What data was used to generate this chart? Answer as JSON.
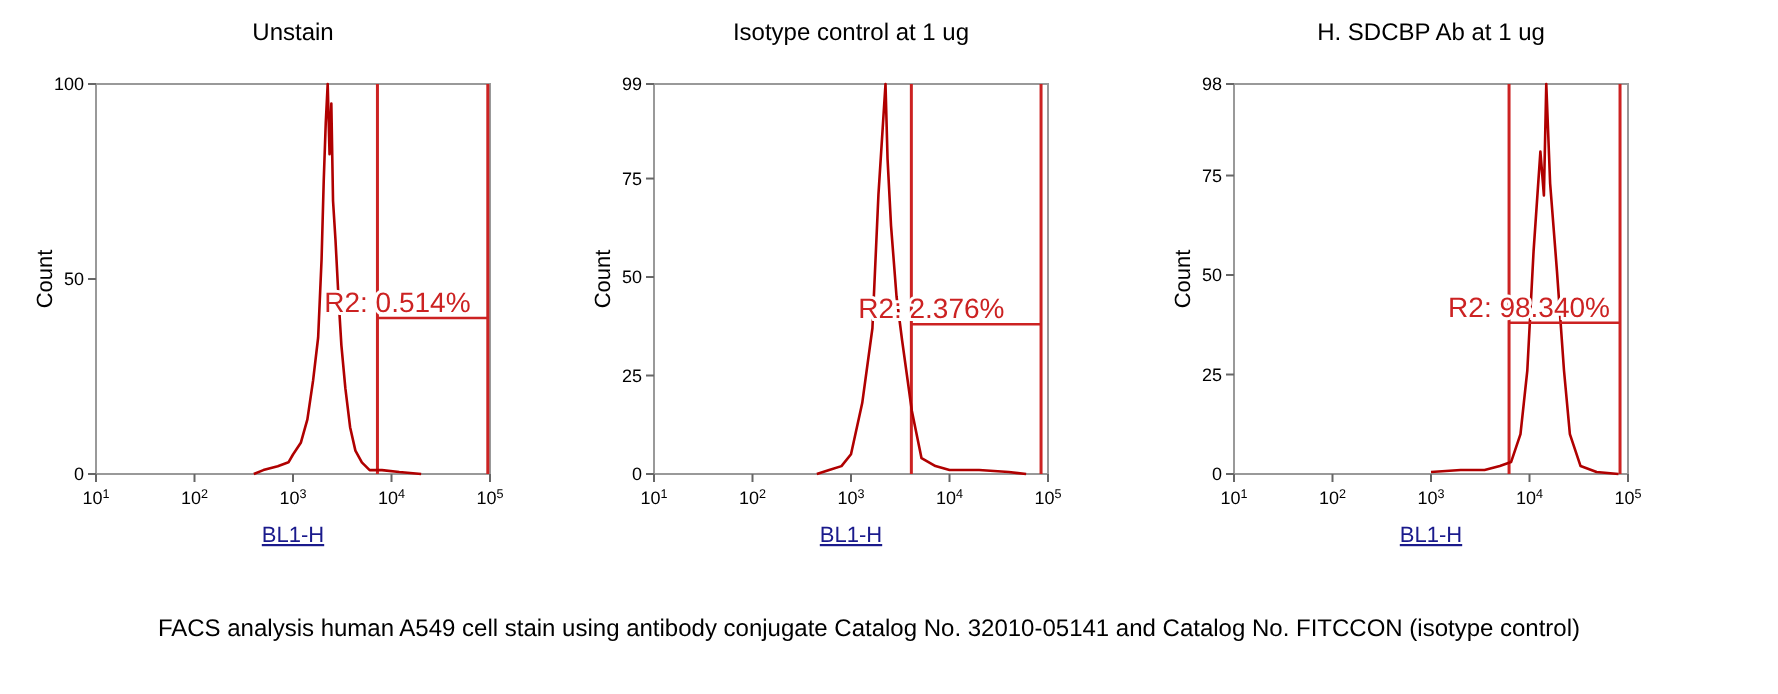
{
  "chart_data": [
    {
      "type": "line",
      "title": "Unstain",
      "xlabel": "BL1-H",
      "ylabel": "Count",
      "log": "x",
      "xlim": [
        10,
        100000
      ],
      "ylim": [
        0,
        100
      ],
      "xticks": [
        {
          "value": 10,
          "label": "10$^{1}$"
        },
        {
          "value": 100,
          "label": "10$^{2}$"
        },
        {
          "value": 1000,
          "label": "10$^{3}$"
        },
        {
          "value": 10000,
          "label": "10$^{4}$"
        },
        {
          "value": 100000,
          "label": "10$^{5}$"
        }
      ],
      "yticks": [
        0,
        50,
        100
      ],
      "marker": "none",
      "series": [
        {
          "color": "#b00000",
          "x": [
            400,
            500,
            700,
            900,
            1000,
            1200,
            1400,
            1600,
            1800,
            1950,
            2050,
            2150,
            2250,
            2350,
            2450,
            2550,
            2700,
            2900,
            3100,
            3400,
            3800,
            4300,
            5000,
            6000,
            8000,
            12000,
            20000
          ],
          "values": [
            0,
            1,
            2,
            3,
            5,
            8,
            14,
            24,
            35,
            55,
            75,
            90,
            100,
            82,
            95,
            70,
            60,
            45,
            33,
            22,
            12,
            6,
            3,
            1,
            1,
            0.5,
            0
          ]
        },
        {
          "color": "#cc2222",
          "x": [
            7200,
            95000
          ],
          "values": [
            40,
            40
          ]
        }
      ],
      "ref_lines": [
        {
          "axis": "x",
          "value": 7200,
          "color": "#cc2222"
        },
        {
          "axis": "x",
          "value": 95000,
          "color": "#cc2222"
        }
      ],
      "annotations": [
        {
          "text": "R2: 0.514%",
          "x": 7200,
          "y": 40
        },
        "FACS analysis human A549 cell stain using antibody conjugate Catalog No. 32010-05141 and Catalog No. FITCCON (isotype control)"
      ]
    },
    {
      "type": "line",
      "title": "Isotype control at 1 ug",
      "xlabel": "BL1-H",
      "ylabel": "Count",
      "log": "x",
      "xlim": [
        10,
        100000
      ],
      "ylim": [
        0,
        99
      ],
      "xticks": [
        {
          "value": 10,
          "label": "10$^{1}$"
        },
        {
          "value": 100,
          "label": "10$^{2}$"
        },
        {
          "value": 1000,
          "label": "10$^{3}$"
        },
        {
          "value": 10000,
          "label": "10$^{4}$"
        },
        {
          "value": 100000,
          "label": "10$^{5}$"
        }
      ],
      "yticks": [
        0,
        25,
        50,
        75,
        99
      ],
      "marker": "none",
      "series": [
        {
          "color": "#b00000",
          "x": [
            450,
            600,
            800,
            1000,
            1300,
            1650,
            1900,
            2100,
            2240,
            2350,
            2550,
            2900,
            3300,
            4150,
            5200,
            7200,
            10000,
            20000,
            40000,
            60000
          ],
          "values": [
            0,
            1,
            2,
            5,
            18,
            37,
            71,
            88,
            99,
            80,
            63,
            45,
            34,
            16,
            4,
            2,
            1,
            1,
            0.5,
            0
          ]
        },
        {
          "color": "#cc2222",
          "x": [
            4100,
            85000
          ],
          "values": [
            38,
            38
          ]
        }
      ],
      "ref_lines": [
        {
          "axis": "x",
          "value": 4100,
          "color": "#cc2222"
        },
        {
          "axis": "x",
          "value": 85000,
          "color": "#cc2222"
        }
      ],
      "annotations": [
        {
          "text": "R2: 2.376%",
          "x": 4100,
          "y": 38
        }
      ]
    },
    {
      "type": "line",
      "title": "H. SDCBP Ab at 1 ug",
      "xlabel": "BL1-H",
      "ylabel": "Count",
      "log": "x",
      "xlim": [
        10,
        100000
      ],
      "ylim": [
        0,
        98
      ],
      "xticks": [
        {
          "value": 10,
          "label": "10$^{1}$"
        },
        {
          "value": 100,
          "label": "10$^{2}$"
        },
        {
          "value": 1000,
          "label": "10$^{3}$"
        },
        {
          "value": 10000,
          "label": "10$^{4}$"
        },
        {
          "value": 100000,
          "label": "10$^{5}$"
        }
      ],
      "yticks": [
        0,
        25,
        50,
        75,
        98
      ],
      "marker": "none",
      "series": [
        {
          "color": "#b00000",
          "x": [
            1000,
            2000,
            3500,
            5000,
            6500,
            8100,
            9500,
            11000,
            12900,
            14000,
            14800,
            16200,
            19000,
            22400,
            25700,
            33000,
            48000,
            80000
          ],
          "values": [
            0.5,
            1,
            1,
            2,
            3,
            10,
            26,
            56,
            81,
            70,
            98,
            73,
            51,
            26,
            10,
            2,
            0.5,
            0
          ]
        },
        {
          "color": "#cc2222",
          "x": [
            6200,
            83000
          ],
          "values": [
            38,
            38
          ]
        }
      ],
      "ref_lines": [
        {
          "axis": "x",
          "value": 6200,
          "color": "#cc2222"
        },
        {
          "axis": "x",
          "value": 83000,
          "color": "#cc2222"
        }
      ],
      "annotations": [
        {
          "text": "R2: 98.340%",
          "x": 6200,
          "y": 38
        }
      ]
    }
  ]
}
